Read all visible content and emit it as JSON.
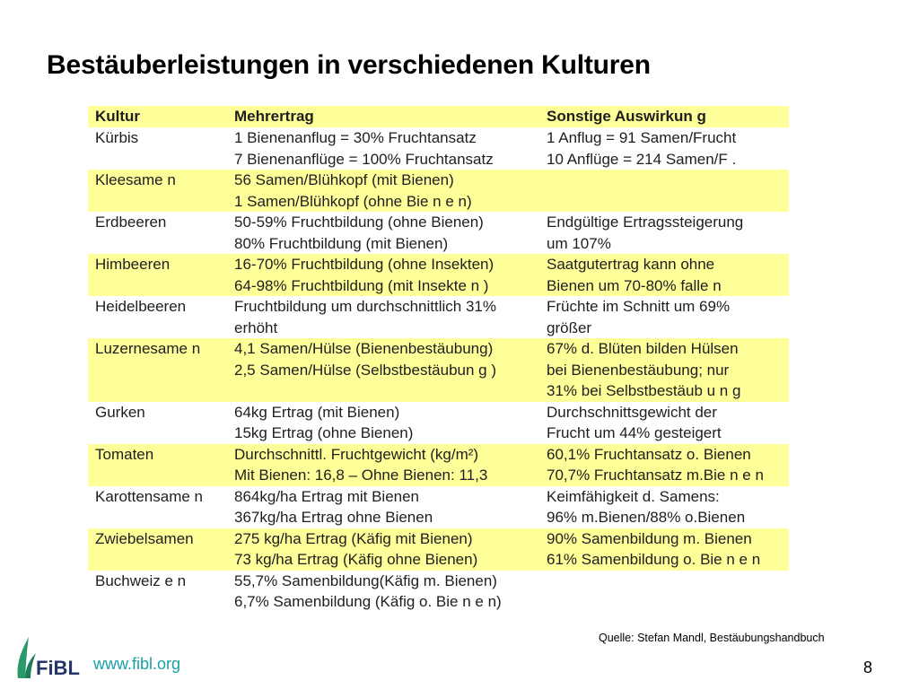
{
  "slide": {
    "title": "Bestäuberleistungen in verschiedenen Kulturen",
    "source": "Quelle: Stefan Mandl, Bestäubungshandbuch",
    "website": "www.fibl.org",
    "page_number": "8",
    "logo_text": "FiBL"
  },
  "table": {
    "headers": [
      "Kultur",
      "Mehrertrag",
      "Sonstige Auswirkun g"
    ],
    "rows": [
      {
        "kultur": "Kürbis",
        "mehrertrag": [
          "1 Bienenanflug = 30% Fruchtansatz",
          "7 Bienenanflüge = 100% Fruchtansatz"
        ],
        "sonstige": [
          "1 Anflug = 91 Samen/Frucht",
          "10 Anflüge = 214 Samen/F ."
        ]
      },
      {
        "kultur": "Kleesame n",
        "mehrertrag": [
          "56 Samen/Blühkopf (mit Bienen)",
          "1 Samen/Blühkopf (ohne Bie n e n)"
        ],
        "sonstige": []
      },
      {
        "kultur": "Erdbeeren",
        "mehrertrag": [
          "50-59% Fruchtbildung (ohne Bienen)",
          "80% Fruchtbildung (mit Bienen)"
        ],
        "sonstige": [
          "Endgültige Ertragssteigerung",
          "um 107%"
        ]
      },
      {
        "kultur": "Himbeeren",
        "mehrertrag": [
          "16-70% Fruchtbildung (ohne Insekten)",
          "64-98% Fruchtbildung (mit Insekte n )"
        ],
        "sonstige": [
          "Saatgutertrag kann ohne",
          "Bienen um 70-80% falle n"
        ]
      },
      {
        "kultur": "Heidelbeeren",
        "mehrertrag": [
          "Fruchtbildung um durchschnittlich 31%",
          "erhöht"
        ],
        "sonstige": [
          "Früchte im Schnitt um 69%",
          "größer"
        ]
      },
      {
        "kultur": "Luzernesame n",
        "mehrertrag": [
          "4,1 Samen/Hülse (Bienenbestäubung)",
          "2,5 Samen/Hülse (Selbstbestäubun g )"
        ],
        "sonstige": [
          "67% d. Blüten bilden Hülsen",
          "bei Bienenbestäubung; nur",
          "31% bei Selbstbestäub u n g"
        ]
      },
      {
        "kultur": "Gurken",
        "mehrertrag": [
          "64kg Ertrag (mit Bienen)",
          "15kg Ertrag (ohne Bienen)"
        ],
        "sonstige": [
          "Durchschnittsgewicht der",
          "Frucht um 44% gesteigert"
        ]
      },
      {
        "kultur": "Tomaten",
        "mehrertrag": [
          "Durchschnittl. Fruchtgewicht (kg/m²)",
          "Mit Bienen: 16,8 – Ohne Bienen: 11,3"
        ],
        "sonstige": [
          "60,1% Fruchtansatz o. Bienen",
          "70,7% Fruchtansatz m.Bie n e n"
        ]
      },
      {
        "kultur": "Karottensame n",
        "mehrertrag": [
          "864kg/ha Ertrag mit Bienen",
          "367kg/ha Ertrag ohne Bienen"
        ],
        "sonstige": [
          "Keimfähigkeit d. Samens:",
          "96% m.Bienen/88% o.Bienen"
        ]
      },
      {
        "kultur": "Zwiebelsamen",
        "mehrertrag": [
          "275 kg/ha Ertrag (Käfig mit Bienen)",
          "73 kg/ha Ertrag (Käfig ohne Bienen)"
        ],
        "sonstige": [
          "90% Samenbildung m. Bienen",
          "61% Samenbildung o. Bie n e n"
        ]
      },
      {
        "kultur": "Buchweiz e n",
        "mehrertrag": [
          "55,7% Samenbildung(Käfig m. Bienen)",
          "6,7% Samenbildung (Käfig o. Bie n e n)"
        ],
        "sonstige": []
      }
    ]
  }
}
